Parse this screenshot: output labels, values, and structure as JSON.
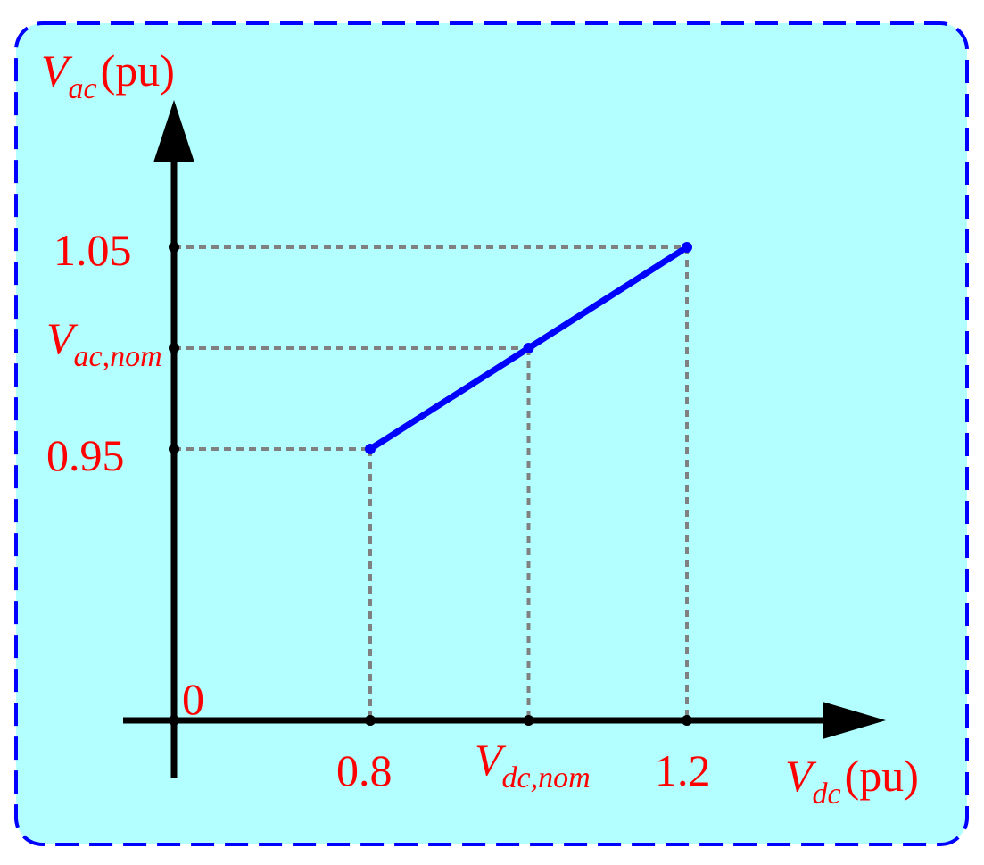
{
  "chart_data": {
    "type": "line",
    "y_axis": {
      "label_main": "V",
      "label_sub": "ac",
      "label_unit": "(pu)",
      "ticks": [
        {
          "value": 0.95,
          "label": "0.95"
        },
        {
          "value": 1.0,
          "label_main": "V",
          "label_sub": "ac,nom"
        },
        {
          "value": 1.05,
          "label": "1.05"
        }
      ]
    },
    "x_axis": {
      "label_main": "V",
      "label_sub": "dc",
      "label_unit": "(pu)",
      "ticks": [
        {
          "value": 0.8,
          "label": "0.8"
        },
        {
          "value": 1.0,
          "label_main": "V",
          "label_sub": "dc,nom"
        },
        {
          "value": 1.2,
          "label": "1.2"
        }
      ]
    },
    "origin_label": "0",
    "series": [
      {
        "x": [
          0.8,
          1.0,
          1.2
        ],
        "y": [
          0.95,
          1.0,
          1.05
        ]
      }
    ],
    "colors": {
      "background": "#b3ffff",
      "border": "#0000ff",
      "line": "#0000ff",
      "axis": "#000000",
      "guide": "#808080",
      "text": "#ff0000"
    }
  }
}
